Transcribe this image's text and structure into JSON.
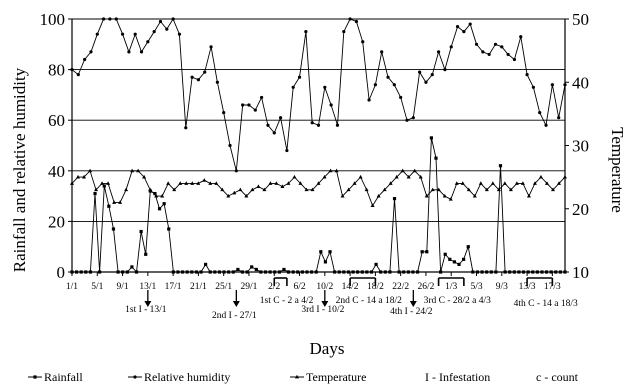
{
  "chart_data": {
    "type": "line",
    "ylabel": "Rainfall and relative humidity",
    "y2label": "Temperature",
    "xlabel": "Days",
    "ylim": [
      0,
      100
    ],
    "y2lim": [
      10,
      50
    ],
    "yticks": [
      "0",
      "20",
      "40",
      "60",
      "80",
      "100"
    ],
    "y2ticks": [
      "10",
      "20",
      "30",
      "40",
      "50"
    ],
    "grid": "horizontal",
    "xticks": [
      {
        "label": "1/1",
        "day": 0
      },
      {
        "label": "5/1",
        "day": 4
      },
      {
        "label": "9/1",
        "day": 8
      },
      {
        "label": "13/1",
        "day": 12
      },
      {
        "label": "17/1",
        "day": 16
      },
      {
        "label": "21/1",
        "day": 20
      },
      {
        "label": "25/1",
        "day": 24
      },
      {
        "label": "29/1",
        "day": 28
      },
      {
        "label": "2/2",
        "day": 32
      },
      {
        "label": "6/2",
        "day": 36
      },
      {
        "label": "10/2",
        "day": 40
      },
      {
        "label": "14/2",
        "day": 44
      },
      {
        "label": "18/2",
        "day": 48
      },
      {
        "label": "22/2",
        "day": 52
      },
      {
        "label": "26/2",
        "day": 56
      },
      {
        "label": "1/3",
        "day": 60
      },
      {
        "label": "5/3",
        "day": 64
      },
      {
        "label": "9/3",
        "day": 68
      },
      {
        "label": "13/3",
        "day": 72
      },
      {
        "label": "17/3",
        "day": 76
      }
    ],
    "series": [
      {
        "name": "Rainfall",
        "axis": "left",
        "values": [
          0,
          0,
          0,
          0,
          0,
          31,
          0,
          34,
          26,
          17,
          0,
          0,
          0,
          2,
          0,
          16,
          7,
          32,
          31,
          25,
          27,
          17,
          0,
          0,
          0,
          0,
          0,
          0,
          0,
          3,
          0,
          0,
          0,
          0,
          0,
          0,
          1,
          0,
          0,
          2,
          1,
          0,
          0,
          0,
          0,
          0,
          1,
          0,
          0,
          0,
          0,
          0,
          0,
          0,
          8,
          4,
          8,
          0,
          0,
          0,
          0,
          0,
          0,
          0,
          0,
          0,
          3,
          0,
          0,
          0,
          29,
          0,
          0,
          0,
          0,
          0,
          8,
          8,
          53,
          45,
          0,
          7,
          5,
          4,
          3,
          5,
          10,
          0,
          0,
          0,
          0,
          0,
          0,
          42,
          0,
          0,
          0,
          0,
          0,
          0,
          0,
          0,
          0,
          0,
          0,
          0,
          0,
          0
        ]
      },
      {
        "name": "Relative humidity",
        "axis": "left",
        "values": [
          80,
          78,
          84,
          87,
          94,
          100,
          100,
          100,
          94,
          87,
          94,
          87,
          91,
          95,
          99,
          96,
          100,
          94,
          57,
          77,
          76,
          79,
          89,
          75,
          63,
          50,
          40,
          66,
          66,
          64,
          69,
          58,
          55,
          61,
          48,
          73,
          77,
          95,
          59,
          58,
          73,
          66,
          58,
          95,
          100,
          99,
          91,
          68,
          74,
          87,
          77,
          74,
          69,
          60,
          61,
          79,
          75,
          78,
          87,
          80,
          89,
          97,
          95,
          98,
          90,
          87,
          86,
          90,
          89,
          86,
          84,
          93,
          78,
          73,
          63,
          58,
          74,
          61,
          74
        ]
      },
      {
        "name": "Temperature",
        "axis": "right",
        "values": [
          24,
          25,
          25,
          26,
          23,
          24,
          24,
          21,
          21,
          23,
          26,
          26,
          25,
          23,
          22,
          22,
          24,
          23,
          24,
          24,
          24,
          24,
          24.5,
          24,
          24,
          23,
          22,
          22.5,
          23,
          22,
          23,
          23.5,
          23,
          24,
          24,
          23.5,
          24,
          25,
          24,
          23,
          23,
          24,
          25,
          26,
          26,
          22,
          23,
          24,
          25,
          23,
          20.5,
          22,
          23,
          24,
          25,
          26,
          25,
          26,
          25,
          22,
          23,
          23,
          22,
          21.5,
          24,
          24,
          23,
          22,
          24,
          23,
          24,
          23,
          24,
          23,
          24,
          24,
          22,
          24,
          25,
          24,
          23,
          24,
          25
        ]
      }
    ],
    "infestations": [
      {
        "label": "1st I - 13/1",
        "day": 12
      },
      {
        "label": "2nd I - 27/1",
        "day": 26
      },
      {
        "label": "3rd I - 10/2",
        "day": 40
      },
      {
        "label": "4th I - 24/2",
        "day": 54
      }
    ],
    "counts": [
      {
        "label": "1st C - 2 a 4/2",
        "from": 32,
        "to": 34
      },
      {
        "label": "2nd C - 14 a 18/2",
        "from": 44,
        "to": 48
      },
      {
        "label": "3rd C - 28/2 a 4/3",
        "from": 58,
        "to": 62
      },
      {
        "label": "4th C - 14 a 18/3",
        "from": 72,
        "to": 76
      }
    ],
    "legend": {
      "placement": "bottom",
      "items": [
        "Rainfall",
        "Relative humidity",
        "Temperature",
        "I - Infestation",
        "c - count"
      ]
    }
  }
}
